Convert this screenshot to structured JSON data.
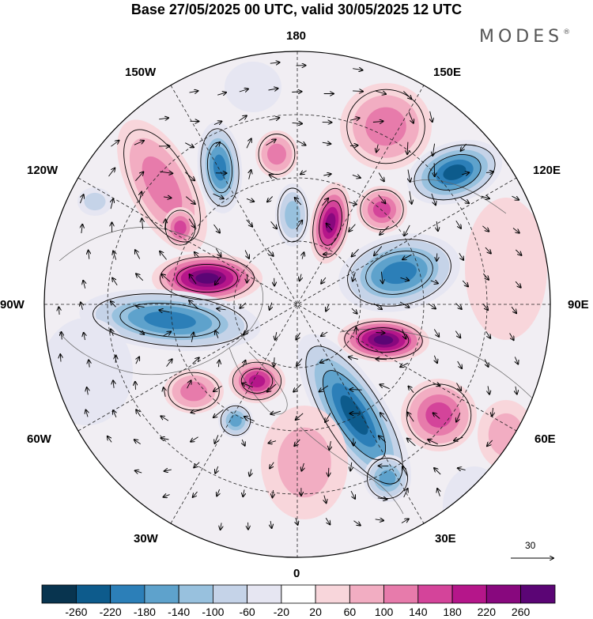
{
  "title": "Base 27/05/2025 00 UTC, valid 30/05/2025 12 UTC",
  "brand": {
    "name": "MODES",
    "registered_mark": "®"
  },
  "longitude_labels": {
    "lon_180": "180",
    "lon_150w": "150W",
    "lon_150e": "150E",
    "lon_120w": "120W",
    "lon_120e": "120E",
    "lon_90w": "90W",
    "lon_90e": "90E",
    "lon_60w": "60W",
    "lon_60e": "60E",
    "lon_30w": "30W",
    "lon_30e": "30E",
    "lon_0": "0"
  },
  "reference_vector": {
    "value": "30"
  },
  "colorbar": {
    "ticks": [
      "-260",
      "-220",
      "-180",
      "-140",
      "-100",
      "-60",
      "-20",
      "20",
      "60",
      "100",
      "140",
      "180",
      "220",
      "260"
    ],
    "colors": [
      "#08344f",
      "#0d5b8c",
      "#2c7fb8",
      "#5ea2cc",
      "#98c1de",
      "#c5d3e8",
      "#e6e6f2",
      "#ffffff",
      "#f8d6db",
      "#f2adc2",
      "#e77bab",
      "#d4449a",
      "#b5168a",
      "#88087e",
      "#5b0575"
    ]
  },
  "colors": {
    "map_background": "#ffffff",
    "neutral_fill": "#ececec",
    "contour_solid": "#000000",
    "coast": "#555555"
  }
}
